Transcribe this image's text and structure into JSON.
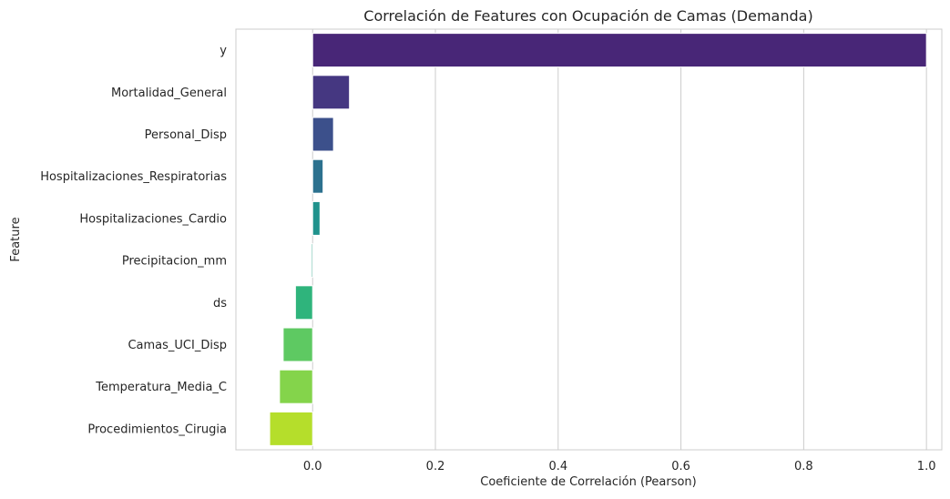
{
  "chart_data": {
    "type": "bar",
    "orientation": "horizontal",
    "title": "Correlación de Features con Ocupación de Camas (Demanda)",
    "xlabel": "Coeficiente de Correlación (Pearson)",
    "ylabel": "Feature",
    "xlim": [
      -0.125,
      1.025
    ],
    "xticks": [
      "0.0",
      "0.2",
      "0.4",
      "0.6",
      "0.8",
      "1.0"
    ],
    "xtick_values": [
      0.0,
      0.2,
      0.4,
      0.6,
      0.8,
      1.0
    ],
    "grid": "vertical",
    "palette": "viridis",
    "categories": [
      "y",
      "Mortalidad_General",
      "Personal_Disp",
      "Hospitalizaciones_Respiratorias",
      "Hospitalizaciones_Cardio",
      "Precipitacion_mm",
      "ds",
      "Camas_UCI_Disp",
      "Temperatura_Media_C",
      "Procedimientos_Cirugia"
    ],
    "values": [
      1.0,
      0.06,
      0.034,
      0.017,
      0.012,
      -0.002,
      -0.028,
      -0.048,
      -0.054,
      -0.07
    ],
    "colors": [
      "#482677",
      "#453781",
      "#3c508b",
      "#2c718e",
      "#20928c",
      "#20a486",
      "#2fb47c",
      "#5ec962",
      "#84d44b",
      "#b5de2b"
    ]
  }
}
